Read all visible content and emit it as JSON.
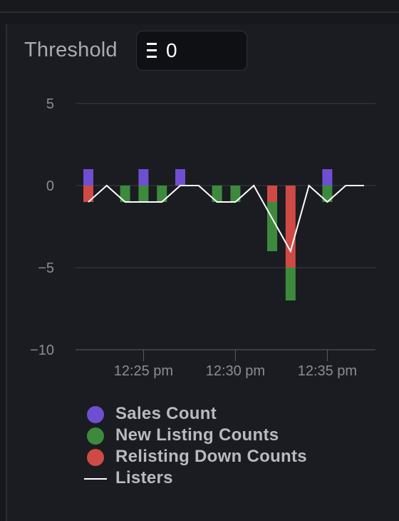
{
  "threshold": {
    "label": "Threshold",
    "value": "0",
    "icon": "eth-icon"
  },
  "colors": {
    "sales": "#6f4fd1",
    "new_listing": "#3d8a3d",
    "relisting_down": "#d04a45",
    "listers": "#ffffff",
    "grid": "#3a3d44",
    "tick_text": "#8a8d93"
  },
  "chart_data": {
    "type": "bar",
    "y_ticks": [
      5,
      0,
      -5,
      -10
    ],
    "y_tick_labels": [
      "5",
      "0",
      "−5",
      "−10"
    ],
    "ylim": [
      -10,
      5
    ],
    "xlim": [
      "12:21",
      "12:37"
    ],
    "x_ticks": [
      "12:25",
      "12:30",
      "12:35"
    ],
    "x_tick_labels": [
      "12:25 pm",
      "12:30 pm",
      "12:35 pm"
    ],
    "grid": true,
    "legend_position": "bottom",
    "bars": [
      {
        "time": "12:22",
        "sales": 1,
        "new_listing": 0,
        "relisting_down": -1
      },
      {
        "time": "12:24",
        "sales": 0,
        "new_listing": -1,
        "relisting_down": 0
      },
      {
        "time": "12:25",
        "sales": 1,
        "new_listing": -1,
        "relisting_down": 0
      },
      {
        "time": "12:26",
        "sales": 0,
        "new_listing": -1,
        "relisting_down": 0
      },
      {
        "time": "12:27",
        "sales": 1,
        "new_listing": 0,
        "relisting_down": 0
      },
      {
        "time": "12:29",
        "sales": 0,
        "new_listing": -1,
        "relisting_down": 0
      },
      {
        "time": "12:30",
        "sales": 0,
        "new_listing": -1,
        "relisting_down": 0
      },
      {
        "time": "12:32",
        "sales": 0,
        "new_listing": -3,
        "relisting_down": -1
      },
      {
        "time": "12:33",
        "sales": 0,
        "new_listing": -2,
        "relisting_down": -5
      },
      {
        "time": "12:35",
        "sales": 1,
        "new_listing": -1,
        "relisting_down": 0
      }
    ],
    "listers": [
      {
        "time": "12:22",
        "value": -1
      },
      {
        "time": "12:23",
        "value": 0
      },
      {
        "time": "12:24",
        "value": -1
      },
      {
        "time": "12:25",
        "value": -1
      },
      {
        "time": "12:26",
        "value": -1
      },
      {
        "time": "12:27",
        "value": 0
      },
      {
        "time": "12:28",
        "value": 0
      },
      {
        "time": "12:29",
        "value": -1
      },
      {
        "time": "12:30",
        "value": -1
      },
      {
        "time": "12:31",
        "value": 0
      },
      {
        "time": "12:32",
        "value": -2
      },
      {
        "time": "12:33",
        "value": -4
      },
      {
        "time": "12:34",
        "value": 0
      },
      {
        "time": "12:35",
        "value": -1
      },
      {
        "time": "12:36",
        "value": 0
      },
      {
        "time": "12:37",
        "value": 0
      }
    ],
    "series": [
      {
        "name": "Sales Count",
        "key": "sales"
      },
      {
        "name": "New Listing Counts",
        "key": "new_listing"
      },
      {
        "name": "Relisting Down Counts",
        "key": "relisting_down"
      },
      {
        "name": "Listers",
        "key": "listers"
      }
    ]
  }
}
